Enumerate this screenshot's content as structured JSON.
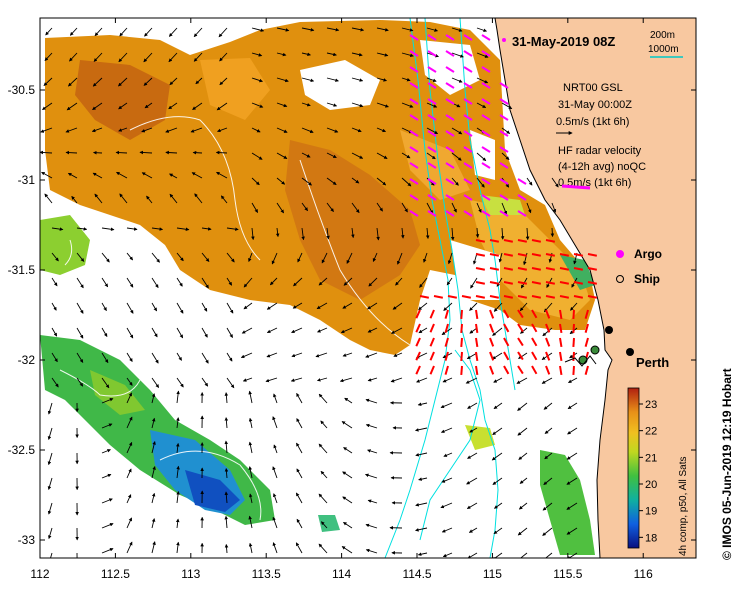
{
  "map": {
    "timestamp": "31-May-2019 08Z",
    "scale": {
      "label_1": "200m",
      "label_2": "1000m",
      "color_2": "#00c8c8"
    },
    "legend": {
      "nrt_line1": "NRT00 GSL",
      "nrt_line2": "31-May 00:00Z",
      "nrt_line3": "0.5m/s (1kt 6h)",
      "hf_line1": "HF radar velocity",
      "hf_line2": "(4-12h avg) noQC",
      "hf_line3": "0.5m/s (1kt 6h)",
      "argo_label": "Argo",
      "ship_label": "Ship",
      "argo_color": "#ff00ff",
      "hf_color": "#ff00ff"
    },
    "city_label": "Perth",
    "credit": "© IMOS 05-Jun-2019 12:19 Hobart",
    "colorbar": {
      "label": "4h comp, p50, All Sats",
      "ticks": [
        "23",
        "22",
        "21",
        "20",
        "19",
        "18"
      ],
      "range": [
        17.6,
        23.6
      ]
    },
    "x_ticks": [
      "112",
      "112.5",
      "113",
      "113.5",
      "114",
      "114.5",
      "115",
      "115.5",
      "116"
    ],
    "y_ticks": [
      "-30.5",
      "-31",
      "-31.5",
      "-32",
      "-32.5",
      "-33"
    ],
    "x_range": [
      112,
      116.35
    ],
    "y_range": [
      -33.1,
      -30.1
    ],
    "colors": {
      "land": "#f8c8a0",
      "coast": "#000000",
      "isobath": "#00e0e0",
      "radar": "#ff0000",
      "argo": "#ff00ff"
    }
  }
}
